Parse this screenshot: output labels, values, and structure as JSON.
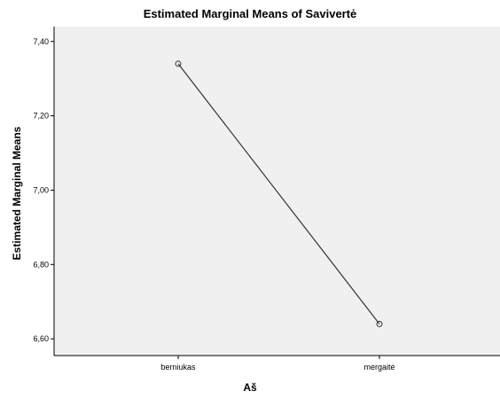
{
  "chart_data": {
    "type": "line",
    "title": "Estimated Marginal Means of Savivertė",
    "xlabel": "Aš",
    "ylabel": "Estimated Marginal Means",
    "categories": [
      "berniukas",
      "mergaitė"
    ],
    "series": [
      {
        "values": [
          7.34,
          6.64
        ]
      }
    ],
    "ylim": [
      6.555,
      7.44
    ],
    "yticks": [
      6.6,
      6.8,
      7.0,
      7.2,
      7.4
    ],
    "ytick_labels": [
      "6,60",
      "6,80",
      "7,00",
      "7,20",
      "7,40"
    ],
    "grid": false,
    "legend": "none",
    "colors": {
      "plot_background": "#f0f0f0",
      "line": "#333333",
      "axis": "#000000"
    }
  }
}
